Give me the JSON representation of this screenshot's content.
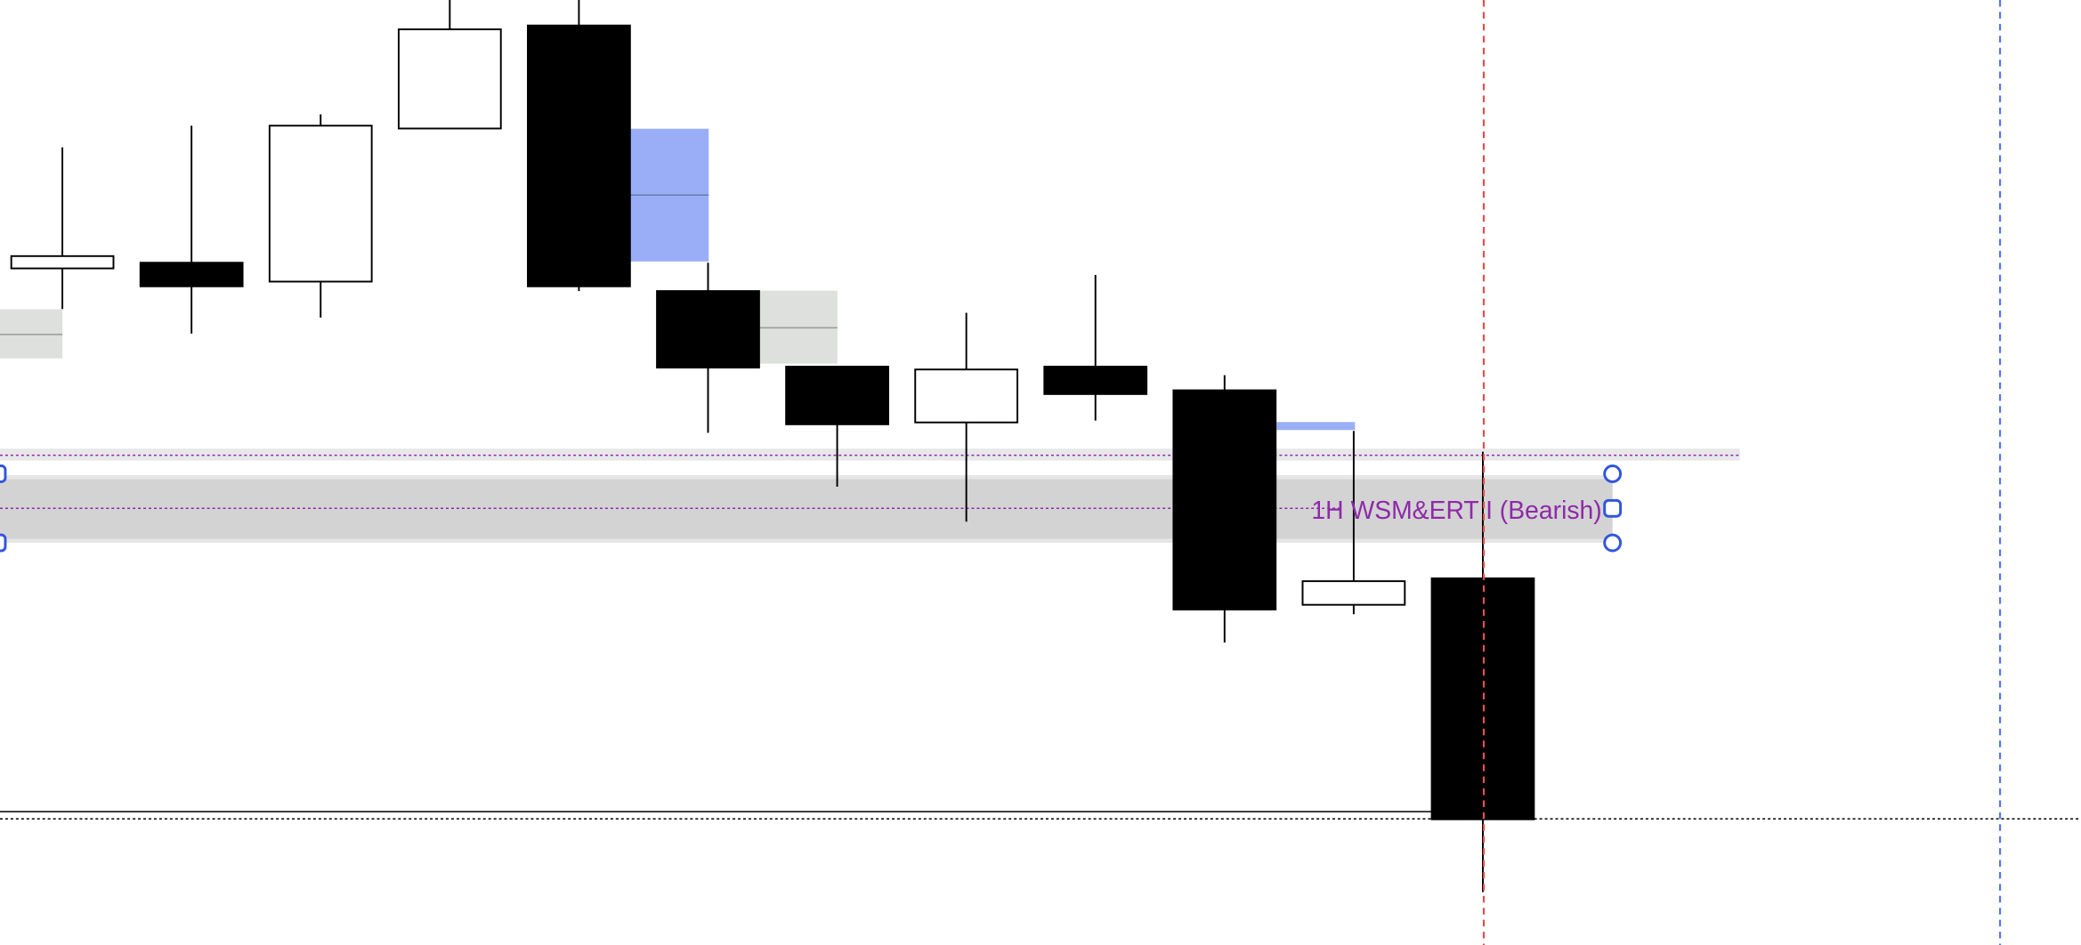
{
  "chart_data": {
    "type": "candlestick",
    "title": "",
    "xlabel": "",
    "ylabel": "",
    "ylim": [
      0,
      100
    ],
    "grid": false,
    "candles": [
      {
        "open": 71.6,
        "high": 84.4,
        "low": 67.3,
        "close": 72.9
      },
      {
        "open": 72.2,
        "high": 86.7,
        "low": 64.7,
        "close": 69.7
      },
      {
        "open": 70.2,
        "high": 87.9,
        "low": 66.4,
        "close": 86.7
      },
      {
        "open": 86.4,
        "high": 100,
        "low": 86.4,
        "close": 96.9
      },
      {
        "open": 97.3,
        "high": 100,
        "low": 69.2,
        "close": 69.7
      },
      {
        "open": 69.2,
        "high": 72.2,
        "low": 54.2,
        "close": 61.1
      },
      {
        "open": 61.2,
        "high": 61.2,
        "low": 48.5,
        "close": 55.1
      },
      {
        "open": 55.3,
        "high": 66.9,
        "low": 44.8,
        "close": 60.9
      },
      {
        "open": 61.2,
        "high": 70.9,
        "low": 55.5,
        "close": 58.3
      },
      {
        "open": 58.7,
        "high": 60.3,
        "low": 32.0,
        "close": 35.5
      },
      {
        "open": 36.0,
        "high": 54.4,
        "low": 35.0,
        "close": 38.5
      },
      {
        "open": 38.8,
        "high": 52.2,
        "low": 5.6,
        "close": 13.3
      }
    ],
    "zone": {
      "label": "1H WSM&ERT I (Bearish)",
      "top": 49.7,
      "bottom": 42.7,
      "mid": 46.2
    },
    "colors": {
      "bull_body": "#ffffff",
      "bear_body": "#000000",
      "zone_fill": "#d3d3d3",
      "label": "#8e2aa8",
      "fvg_blue": "#9aaef7",
      "fvg_grey": "#dde0dd",
      "handle": "#3355dd",
      "session_red": "#e05050",
      "session_blue": "#5577ee"
    }
  }
}
